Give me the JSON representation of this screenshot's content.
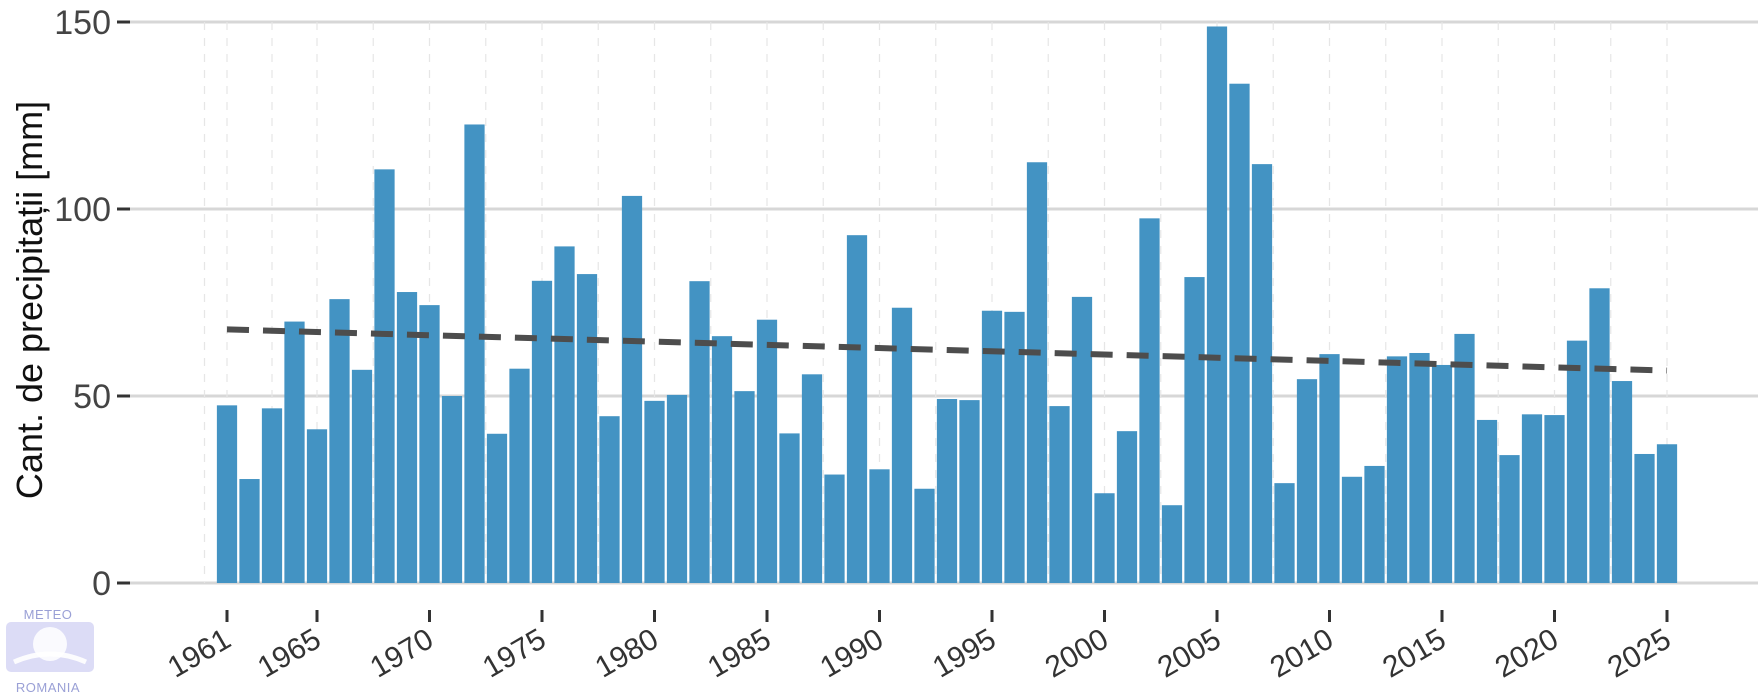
{
  "chart_data": {
    "type": "bar",
    "title": "",
    "xlabel": "",
    "ylabel": "Cant. de precipitații [mm]",
    "ylim": [
      0,
      150
    ],
    "y_ticks": [
      0,
      50,
      100,
      150
    ],
    "x_ticks": [
      1961,
      1965,
      1970,
      1975,
      1980,
      1985,
      1990,
      1995,
      2000,
      2005,
      2010,
      2015,
      2020,
      2025
    ],
    "grid": true,
    "legend": "none",
    "bar_color": "#4393c3",
    "trend_color": "#4d4d4d",
    "x": [
      1961,
      1962,
      1963,
      1964,
      1965,
      1966,
      1967,
      1968,
      1969,
      1970,
      1971,
      1972,
      1973,
      1974,
      1975,
      1976,
      1977,
      1978,
      1979,
      1980,
      1981,
      1982,
      1983,
      1984,
      1985,
      1986,
      1987,
      1988,
      1989,
      1990,
      1991,
      1992,
      1993,
      1994,
      1995,
      1996,
      1997,
      1998,
      1999,
      2000,
      2001,
      2002,
      2003,
      2004,
      2005,
      2006,
      2007,
      2008,
      2009,
      2010,
      2011,
      2012,
      2013,
      2014,
      2015,
      2016,
      2017,
      2018,
      2019,
      2020,
      2021,
      2022,
      2023,
      2024,
      2025
    ],
    "values": [
      47.5,
      27.8,
      46.7,
      69.9,
      41.1,
      75.9,
      57.0,
      110.6,
      77.8,
      74.3,
      50.0,
      122.6,
      39.9,
      57.3,
      80.8,
      90.0,
      82.6,
      44.6,
      103.5,
      48.7,
      50.3,
      80.7,
      66.0,
      51.3,
      70.4,
      40.0,
      55.8,
      29.0,
      93.0,
      30.4,
      73.6,
      25.2,
      49.2,
      48.9,
      72.8,
      72.5,
      112.5,
      47.3,
      76.5,
      24.0,
      40.6,
      97.5,
      20.8,
      81.8,
      148.8,
      133.5,
      112.0,
      26.7,
      54.5,
      61.2,
      28.4,
      31.3,
      60.6,
      61.5,
      58.3,
      66.6,
      43.6,
      34.2,
      45.1,
      44.9,
      64.8,
      78.8,
      54.0,
      34.5,
      37.1
    ],
    "trend": {
      "type": "linear",
      "start": [
        1961,
        67.8
      ],
      "end": [
        2025,
        56.8
      ]
    }
  },
  "watermark": {
    "top_text": "METEO",
    "bottom_text": "ROMANIA"
  }
}
